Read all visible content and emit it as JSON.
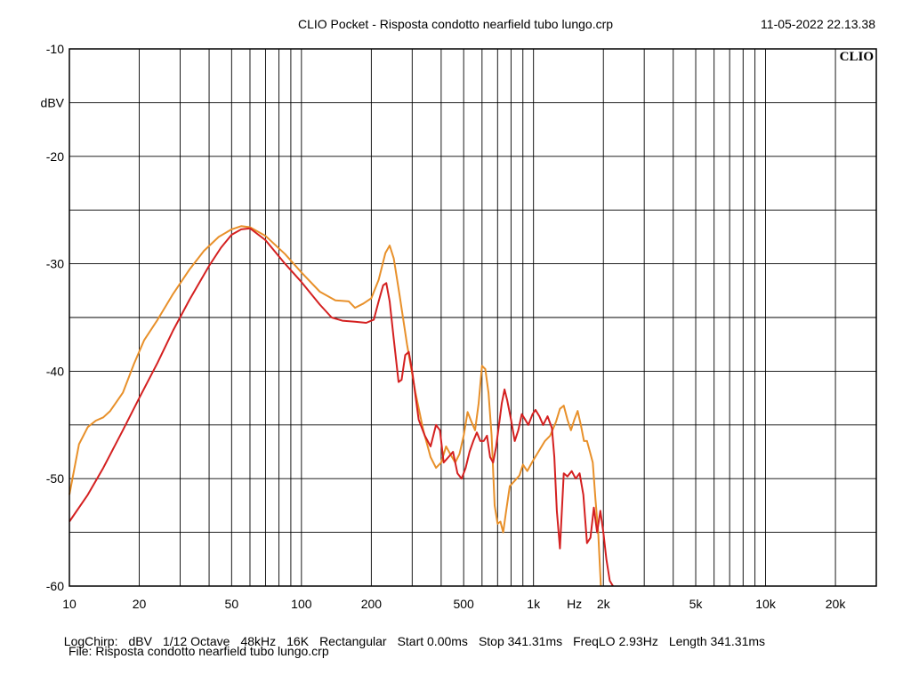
{
  "header": {
    "title": "CLIO Pocket - Risposta condotto nearfield tubo lungo.crp",
    "timestamp": "11-05-2022 22.13.38",
    "logo_text": "CLIO"
  },
  "chart_data": {
    "type": "line",
    "title": "CLIO Pocket - Risposta condotto nearfield tubo lungo.crp",
    "xlabel": "Hz",
    "ylabel": "dBV",
    "xscale": "log",
    "xlim": [
      10,
      30000
    ],
    "ylim": [
      -60,
      -10
    ],
    "grid": true,
    "x_ticks": [
      {
        "value": 10,
        "label": "10"
      },
      {
        "value": 20,
        "label": "20"
      },
      {
        "value": 50,
        "label": "50"
      },
      {
        "value": 100,
        "label": "100"
      },
      {
        "value": 200,
        "label": "200"
      },
      {
        "value": 500,
        "label": "500"
      },
      {
        "value": 1000,
        "label": "1k"
      },
      {
        "value": 2000,
        "label": "2k"
      },
      {
        "value": 5000,
        "label": "5k"
      },
      {
        "value": 10000,
        "label": "10k"
      },
      {
        "value": 20000,
        "label": "20k"
      }
    ],
    "y_ticks": [
      {
        "value": -10,
        "label": "-10"
      },
      {
        "value": -20,
        "label": "-20"
      },
      {
        "value": -30,
        "label": "-30"
      },
      {
        "value": -40,
        "label": "-40"
      },
      {
        "value": -50,
        "label": "-50"
      },
      {
        "value": -60,
        "label": "-60"
      }
    ],
    "y_minor": [
      -15,
      -25,
      -35,
      -45,
      -55
    ],
    "series": [
      {
        "color": "#e8902a",
        "points": [
          [
            10,
            -51.5
          ],
          [
            11,
            -46.8
          ],
          [
            12,
            -45.2
          ],
          [
            13,
            -44.6
          ],
          [
            14,
            -44.3
          ],
          [
            15,
            -43.7
          ],
          [
            17,
            -42.0
          ],
          [
            19,
            -39.3
          ],
          [
            21,
            -37.1
          ],
          [
            24,
            -35.2
          ],
          [
            28,
            -32.8
          ],
          [
            33,
            -30.5
          ],
          [
            38,
            -28.8
          ],
          [
            44,
            -27.5
          ],
          [
            50,
            -26.8
          ],
          [
            55,
            -26.5
          ],
          [
            60,
            -26.6
          ],
          [
            70,
            -27.4
          ],
          [
            85,
            -29.1
          ],
          [
            100,
            -30.8
          ],
          [
            120,
            -32.6
          ],
          [
            140,
            -33.4
          ],
          [
            160,
            -33.5
          ],
          [
            170,
            -34.1
          ],
          [
            185,
            -33.7
          ],
          [
            200,
            -33.2
          ],
          [
            215,
            -31.5
          ],
          [
            230,
            -29.0
          ],
          [
            240,
            -28.3
          ],
          [
            250,
            -29.5
          ],
          [
            265,
            -33.0
          ],
          [
            285,
            -37.5
          ],
          [
            310,
            -42.0
          ],
          [
            335,
            -45.5
          ],
          [
            360,
            -48.0
          ],
          [
            380,
            -49.0
          ],
          [
            400,
            -48.5
          ],
          [
            420,
            -47.0
          ],
          [
            440,
            -47.8
          ],
          [
            460,
            -48.5
          ],
          [
            480,
            -47.7
          ],
          [
            500,
            -46.0
          ],
          [
            520,
            -43.8
          ],
          [
            540,
            -44.7
          ],
          [
            560,
            -45.5
          ],
          [
            580,
            -43.0
          ],
          [
            600,
            -39.5
          ],
          [
            620,
            -39.8
          ],
          [
            640,
            -42.0
          ],
          [
            660,
            -46.0
          ],
          [
            680,
            -52.5
          ],
          [
            700,
            -54.2
          ],
          [
            720,
            -54.0
          ],
          [
            740,
            -55.0
          ],
          [
            760,
            -53.2
          ],
          [
            790,
            -50.7
          ],
          [
            830,
            -50.2
          ],
          [
            870,
            -49.7
          ],
          [
            900,
            -48.7
          ],
          [
            940,
            -49.3
          ],
          [
            990,
            -48.4
          ],
          [
            1050,
            -47.5
          ],
          [
            1120,
            -46.5
          ],
          [
            1180,
            -46.0
          ],
          [
            1250,
            -44.7
          ],
          [
            1300,
            -43.5
          ],
          [
            1350,
            -43.2
          ],
          [
            1400,
            -44.5
          ],
          [
            1450,
            -45.5
          ],
          [
            1500,
            -44.5
          ],
          [
            1550,
            -43.7
          ],
          [
            1600,
            -45.0
          ],
          [
            1650,
            -46.5
          ],
          [
            1700,
            -46.5
          ],
          [
            1750,
            -47.5
          ],
          [
            1800,
            -48.5
          ],
          [
            1850,
            -52.0
          ],
          [
            1900,
            -55.0
          ],
          [
            1950,
            -60.0
          ]
        ]
      },
      {
        "color": "#d42020",
        "points": [
          [
            10,
            -54.0
          ],
          [
            12,
            -51.5
          ],
          [
            14,
            -49.0
          ],
          [
            17,
            -45.5
          ],
          [
            20,
            -42.5
          ],
          [
            24,
            -39.2
          ],
          [
            28,
            -36.2
          ],
          [
            33,
            -33.3
          ],
          [
            40,
            -30.2
          ],
          [
            45,
            -28.5
          ],
          [
            50,
            -27.3
          ],
          [
            55,
            -26.8
          ],
          [
            60,
            -26.7
          ],
          [
            70,
            -27.8
          ],
          [
            85,
            -30.0
          ],
          [
            100,
            -31.7
          ],
          [
            120,
            -33.8
          ],
          [
            135,
            -35.0
          ],
          [
            150,
            -35.3
          ],
          [
            170,
            -35.4
          ],
          [
            190,
            -35.5
          ],
          [
            205,
            -35.2
          ],
          [
            215,
            -33.5
          ],
          [
            225,
            -32.0
          ],
          [
            232,
            -31.8
          ],
          [
            240,
            -33.5
          ],
          [
            250,
            -37.0
          ],
          [
            262,
            -41.0
          ],
          [
            270,
            -40.8
          ],
          [
            280,
            -38.5
          ],
          [
            290,
            -38.2
          ],
          [
            300,
            -40.0
          ],
          [
            320,
            -44.5
          ],
          [
            340,
            -46.0
          ],
          [
            360,
            -47.0
          ],
          [
            380,
            -45.0
          ],
          [
            395,
            -45.5
          ],
          [
            410,
            -48.5
          ],
          [
            430,
            -48.0
          ],
          [
            450,
            -47.5
          ],
          [
            470,
            -49.5
          ],
          [
            490,
            -50.0
          ],
          [
            510,
            -49.0
          ],
          [
            530,
            -47.5
          ],
          [
            550,
            -46.5
          ],
          [
            570,
            -45.7
          ],
          [
            590,
            -46.5
          ],
          [
            610,
            -46.5
          ],
          [
            630,
            -46.0
          ],
          [
            650,
            -48.0
          ],
          [
            670,
            -48.5
          ],
          [
            690,
            -47.0
          ],
          [
            710,
            -45.0
          ],
          [
            730,
            -43.0
          ],
          [
            750,
            -41.7
          ],
          [
            770,
            -42.7
          ],
          [
            800,
            -44.5
          ],
          [
            830,
            -46.5
          ],
          [
            860,
            -45.5
          ],
          [
            890,
            -44.0
          ],
          [
            920,
            -44.5
          ],
          [
            950,
            -45.0
          ],
          [
            990,
            -44.0
          ],
          [
            1020,
            -43.6
          ],
          [
            1060,
            -44.2
          ],
          [
            1100,
            -45.0
          ],
          [
            1150,
            -44.2
          ],
          [
            1200,
            -45.3
          ],
          [
            1230,
            -48.0
          ],
          [
            1260,
            -53.0
          ],
          [
            1300,
            -56.5
          ],
          [
            1350,
            -49.5
          ],
          [
            1400,
            -49.8
          ],
          [
            1460,
            -49.3
          ],
          [
            1520,
            -50.0
          ],
          [
            1580,
            -49.5
          ],
          [
            1640,
            -51.5
          ],
          [
            1700,
            -56.0
          ],
          [
            1760,
            -55.5
          ],
          [
            1820,
            -52.7
          ],
          [
            1880,
            -55.0
          ],
          [
            1940,
            -53.0
          ],
          [
            2000,
            -55.0
          ],
          [
            2060,
            -57.5
          ],
          [
            2130,
            -59.5
          ],
          [
            2200,
            -60.0
          ]
        ]
      }
    ]
  },
  "footer": {
    "params": [
      "LogChirp:",
      "dBV",
      "1/12 Octave",
      "48kHz",
      "16K",
      "Rectangular",
      "Start 0.00ms",
      "Stop 341.31ms",
      "FreqLO 2.93Hz",
      "Length 341.31ms"
    ],
    "file_line": "File: Risposta condotto nearfield tubo lungo.crp"
  }
}
